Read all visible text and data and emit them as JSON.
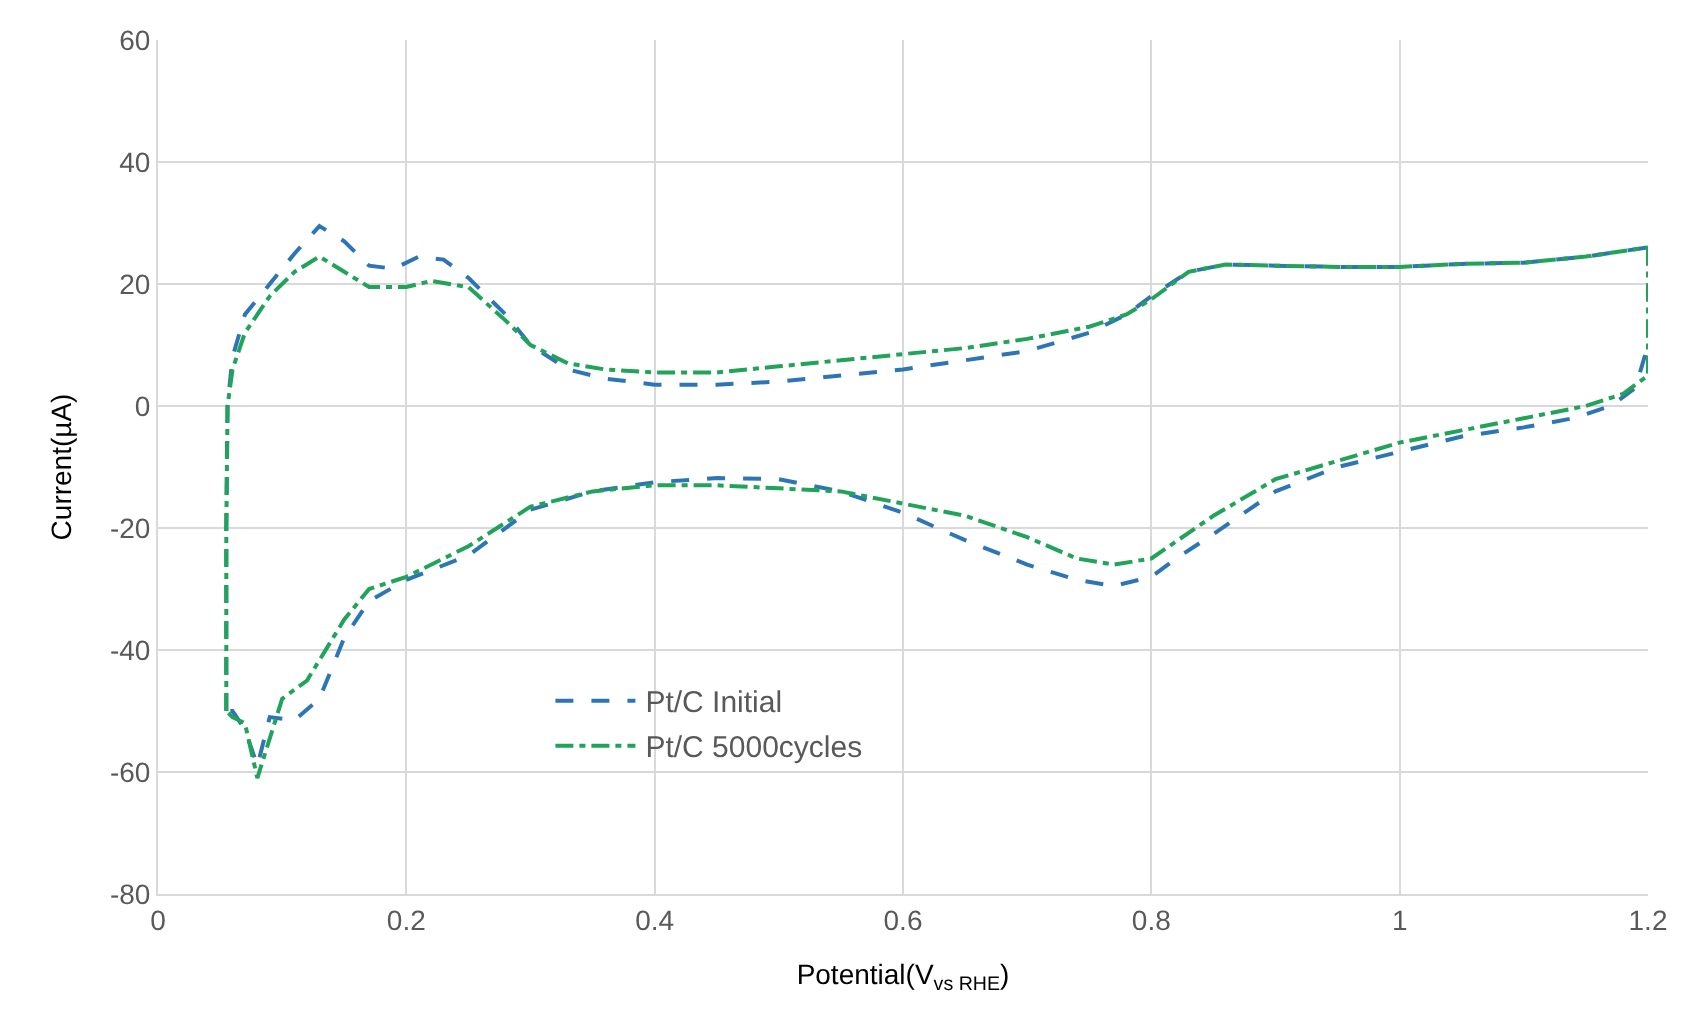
{
  "chart_data": {
    "type": "line",
    "xlabel": "Potential(V$_{vs RHE}$)",
    "ylabel": "Current(µA)",
    "xlim": [
      0,
      1.2
    ],
    "xticks": [
      0,
      0.2,
      0.4,
      0.6,
      0.8,
      1,
      1.2
    ],
    "ylim": [
      -80,
      60
    ],
    "yticks": [
      -80,
      -60,
      -40,
      -20,
      0,
      20,
      40,
      60
    ],
    "grid": true,
    "legend": "bottom left",
    "marker": "none",
    "series": [
      {
        "name": "Pt/C Initial",
        "color": "#2e75b6",
        "line_style": "dashed",
        "x": [
          0.055,
          0.055,
          0.056,
          0.06,
          0.07,
          0.09,
          0.11,
          0.13,
          0.15,
          0.17,
          0.19,
          0.21,
          0.23,
          0.25,
          0.28,
          0.3,
          0.33,
          0.36,
          0.4,
          0.45,
          0.5,
          0.55,
          0.6,
          0.65,
          0.7,
          0.75,
          0.78,
          0.8,
          0.83,
          0.86,
          0.9,
          0.95,
          1.0,
          1.05,
          1.1,
          1.15,
          1.2
        ],
        "values": [
          -50,
          -20,
          0,
          8,
          15,
          20,
          25,
          29.5,
          27,
          23,
          22.5,
          24.5,
          24,
          21,
          15,
          10,
          6,
          4.5,
          3.5,
          3.5,
          4,
          5,
          6,
          7.5,
          9,
          12,
          15,
          18,
          22,
          23.2,
          23,
          22.8,
          22.8,
          23.3,
          23.5,
          24.5,
          26
        ]
      },
      {
        "name": "Pt/C 5000cycles",
        "color": "#21a35a",
        "line_style": "dashdot",
        "x": [
          0.055,
          0.055,
          0.056,
          0.06,
          0.07,
          0.09,
          0.11,
          0.13,
          0.15,
          0.17,
          0.2,
          0.22,
          0.25,
          0.28,
          0.3,
          0.33,
          0.36,
          0.4,
          0.45,
          0.5,
          0.55,
          0.6,
          0.65,
          0.7,
          0.75,
          0.78,
          0.8,
          0.83,
          0.86,
          0.9,
          0.95,
          1.0,
          1.05,
          1.1,
          1.15,
          1.2
        ],
        "values": [
          -50,
          -20,
          0,
          6,
          12,
          18,
          22,
          24.5,
          22,
          19.5,
          19.5,
          20.5,
          19.5,
          14,
          10,
          7,
          6,
          5.5,
          5.5,
          6.5,
          7.5,
          8.5,
          9.5,
          11,
          13,
          15,
          17.5,
          22,
          23.2,
          23,
          22.8,
          22.8,
          23.3,
          23.5,
          24.5,
          26
        ]
      },
      {
        "color": "#2e75b6",
        "line_style": "dashed",
        "x": [
          1.2,
          1.2,
          1.2,
          1.19,
          1.17,
          1.14,
          1.1,
          1.05,
          1.0,
          0.95,
          0.9,
          0.85,
          0.82,
          0.8,
          0.77,
          0.74,
          0.7,
          0.65,
          0.6,
          0.55,
          0.5,
          0.45,
          0.4,
          0.35,
          0.3,
          0.25,
          0.2,
          0.17,
          0.15,
          0.13,
          0.11,
          0.09,
          0.08,
          0.07,
          0.06,
          0.055
        ],
        "values": [
          26,
          20,
          10,
          3,
          0,
          -2,
          -3.5,
          -5,
          -7.5,
          -10,
          -14,
          -21,
          -25,
          -28,
          -29.5,
          -28.5,
          -26,
          -22,
          -17.5,
          -14,
          -12,
          -11.8,
          -12.5,
          -14,
          -17,
          -24.5,
          -28.5,
          -32,
          -38,
          -48,
          -51.5,
          -51,
          -59,
          -53,
          -50,
          -50
        ]
      },
      {
        "color": "#21a35a",
        "line_style": "dashdot",
        "x": [
          1.2,
          1.2,
          1.2,
          1.18,
          1.15,
          1.1,
          1.05,
          1.0,
          0.95,
          0.9,
          0.85,
          0.8,
          0.77,
          0.74,
          0.7,
          0.65,
          0.6,
          0.55,
          0.5,
          0.45,
          0.4,
          0.35,
          0.3,
          0.25,
          0.2,
          0.17,
          0.15,
          0.12,
          0.1,
          0.08,
          0.07,
          0.06,
          0.055
        ],
        "values": [
          26,
          15,
          5,
          2,
          0,
          -2,
          -4,
          -6,
          -9,
          -12,
          -18,
          -25,
          -26,
          -25,
          -21.5,
          -18,
          -16,
          -14,
          -13.5,
          -13,
          -13,
          -14,
          -16.5,
          -23,
          -28,
          -30,
          -35,
          -45,
          -48,
          -61,
          -52,
          -51,
          -50
        ]
      }
    ]
  }
}
